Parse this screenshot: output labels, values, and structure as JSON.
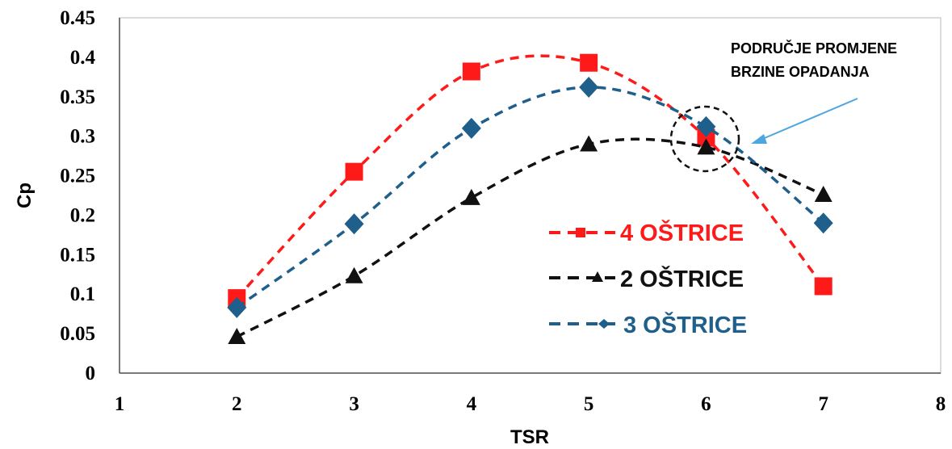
{
  "chart_data": {
    "type": "line",
    "title": "",
    "xlabel": "TSR",
    "ylabel": "Cp",
    "xlim": [
      1,
      8
    ],
    "ylim": [
      0,
      0.45
    ],
    "xticks": [
      1,
      2,
      3,
      4,
      5,
      6,
      7,
      8
    ],
    "yticks": [
      0,
      0.05,
      0.1,
      0.15,
      0.2,
      0.25,
      0.3,
      0.35,
      0.4,
      0.45
    ],
    "ytick_labels": [
      "0",
      "0.05",
      "0.1",
      "0.15",
      "0.2",
      "0.25",
      "0.3",
      "0.35",
      "0.4",
      "0.45"
    ],
    "grid": false,
    "legend_position": "center-right",
    "series": [
      {
        "name": "4 OŠTRICE",
        "color": "#ff1a1a",
        "marker": "square",
        "x": [
          2,
          3,
          4,
          5,
          6,
          7
        ],
        "y": [
          0.095,
          0.255,
          0.382,
          0.393,
          0.298,
          0.11
        ]
      },
      {
        "name": "2 OŠTRICE",
        "color": "#111111",
        "marker": "triangle",
        "x": [
          2,
          3,
          4,
          5,
          6,
          7
        ],
        "y": [
          0.046,
          0.123,
          0.222,
          0.29,
          0.286,
          0.226
        ]
      },
      {
        "name": "3 OŠTRICE",
        "color": "#1f5f8b",
        "marker": "diamond",
        "x": [
          2,
          3,
          4,
          5,
          6,
          7
        ],
        "y": [
          0.083,
          0.189,
          0.31,
          0.362,
          0.312,
          0.19
        ]
      }
    ],
    "annotation": {
      "text_lines": [
        "PODRUČJE PROMJENE",
        "BRZINE OPADANJA"
      ],
      "x": 6,
      "y": 0.3,
      "arrow_color": "#4da6e0"
    }
  }
}
